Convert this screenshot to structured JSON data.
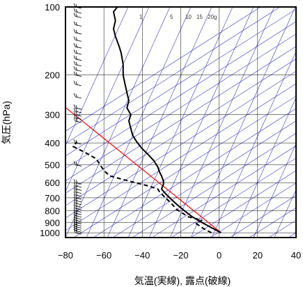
{
  "chart_data": {
    "type": "line",
    "title": "",
    "xlabel": "気温(実線), 露点(破線)",
    "ylabel": "気圧(hPa)",
    "xlim": [
      -80,
      40
    ],
    "ylim": [
      1050,
      100
    ],
    "y_scale": "log",
    "x_ticks": [
      -80,
      -60,
      -40,
      -20,
      0,
      20,
      40
    ],
    "x_tick_labels": [
      "−80",
      "−60",
      "−40",
      "−20",
      "0",
      "20",
      "40"
    ],
    "y_ticks": [
      1000,
      900,
      800,
      700,
      600,
      500,
      400,
      300,
      200,
      100
    ],
    "y_tick_labels": [
      "1000",
      "900",
      "800",
      "700",
      "600",
      "500",
      "400",
      "300",
      "200",
      "100"
    ],
    "mixing_ratio_labels": [
      "1",
      "5",
      "10",
      "15",
      "20g"
    ],
    "colors": {
      "temperature": "#000000",
      "dew_point": "#000000",
      "dry_adiabat": "#3333cc",
      "reference": "#ff0000",
      "grid": "#000000"
    },
    "series": [
      {
        "role": "temperature",
        "style": "solid",
        "points": [
          [
            1,
            1000
          ],
          [
            -2,
            970
          ],
          [
            -6,
            930
          ],
          [
            -10,
            890
          ],
          [
            -14,
            850
          ],
          [
            -18,
            800
          ],
          [
            -22,
            750
          ],
          [
            -25,
            710
          ],
          [
            -28,
            670
          ],
          [
            -30,
            640
          ],
          [
            -29,
            610
          ],
          [
            -29,
            590
          ],
          [
            -30,
            560
          ],
          [
            -31,
            540
          ],
          [
            -32,
            510
          ],
          [
            -34,
            480
          ],
          [
            -37,
            450
          ],
          [
            -40,
            425
          ],
          [
            -43,
            395
          ],
          [
            -45,
            370
          ],
          [
            -46,
            345
          ],
          [
            -47,
            320
          ],
          [
            -46,
            300
          ],
          [
            -48,
            280
          ],
          [
            -47,
            260
          ],
          [
            -48,
            240
          ],
          [
            -49,
            220
          ],
          [
            -50,
            200
          ],
          [
            -50,
            180
          ],
          [
            -51,
            160
          ],
          [
            -52,
            150
          ],
          [
            -54,
            135
          ],
          [
            -55,
            125
          ],
          [
            -54,
            115
          ],
          [
            -55,
            105
          ],
          [
            -53,
            100
          ]
        ]
      },
      {
        "role": "dew_point",
        "style": "dashed",
        "points": [
          [
            -4,
            1000
          ],
          [
            -8,
            960
          ],
          [
            -12,
            910
          ],
          [
            -9,
            880
          ],
          [
            -16,
            850
          ],
          [
            -22,
            790
          ],
          [
            -25,
            740
          ],
          [
            -28,
            700
          ],
          [
            -31,
            660
          ],
          [
            -32,
            640
          ],
          [
            -37,
            620
          ],
          [
            -47,
            590
          ],
          [
            -57,
            560
          ],
          [
            -60,
            530
          ],
          [
            -62,
            500
          ],
          [
            -64,
            470
          ],
          [
            -70,
            440
          ],
          [
            -76,
            415
          ],
          [
            -74,
            395
          ]
        ]
      }
    ],
    "reference_line": [
      [
        -82,
        270
      ],
      [
        1,
        1000
      ]
    ],
    "wind_barbs_pressures": [
      1000,
      980,
      960,
      940,
      920,
      900,
      880,
      860,
      840,
      820,
      800,
      780,
      760,
      740,
      720,
      700,
      680,
      660,
      640,
      620,
      600,
      500,
      400,
      320,
      310,
      300,
      290,
      280,
      250,
      220,
      200,
      190,
      180,
      170,
      160,
      150,
      140,
      130,
      120,
      110,
      105,
      100
    ]
  }
}
